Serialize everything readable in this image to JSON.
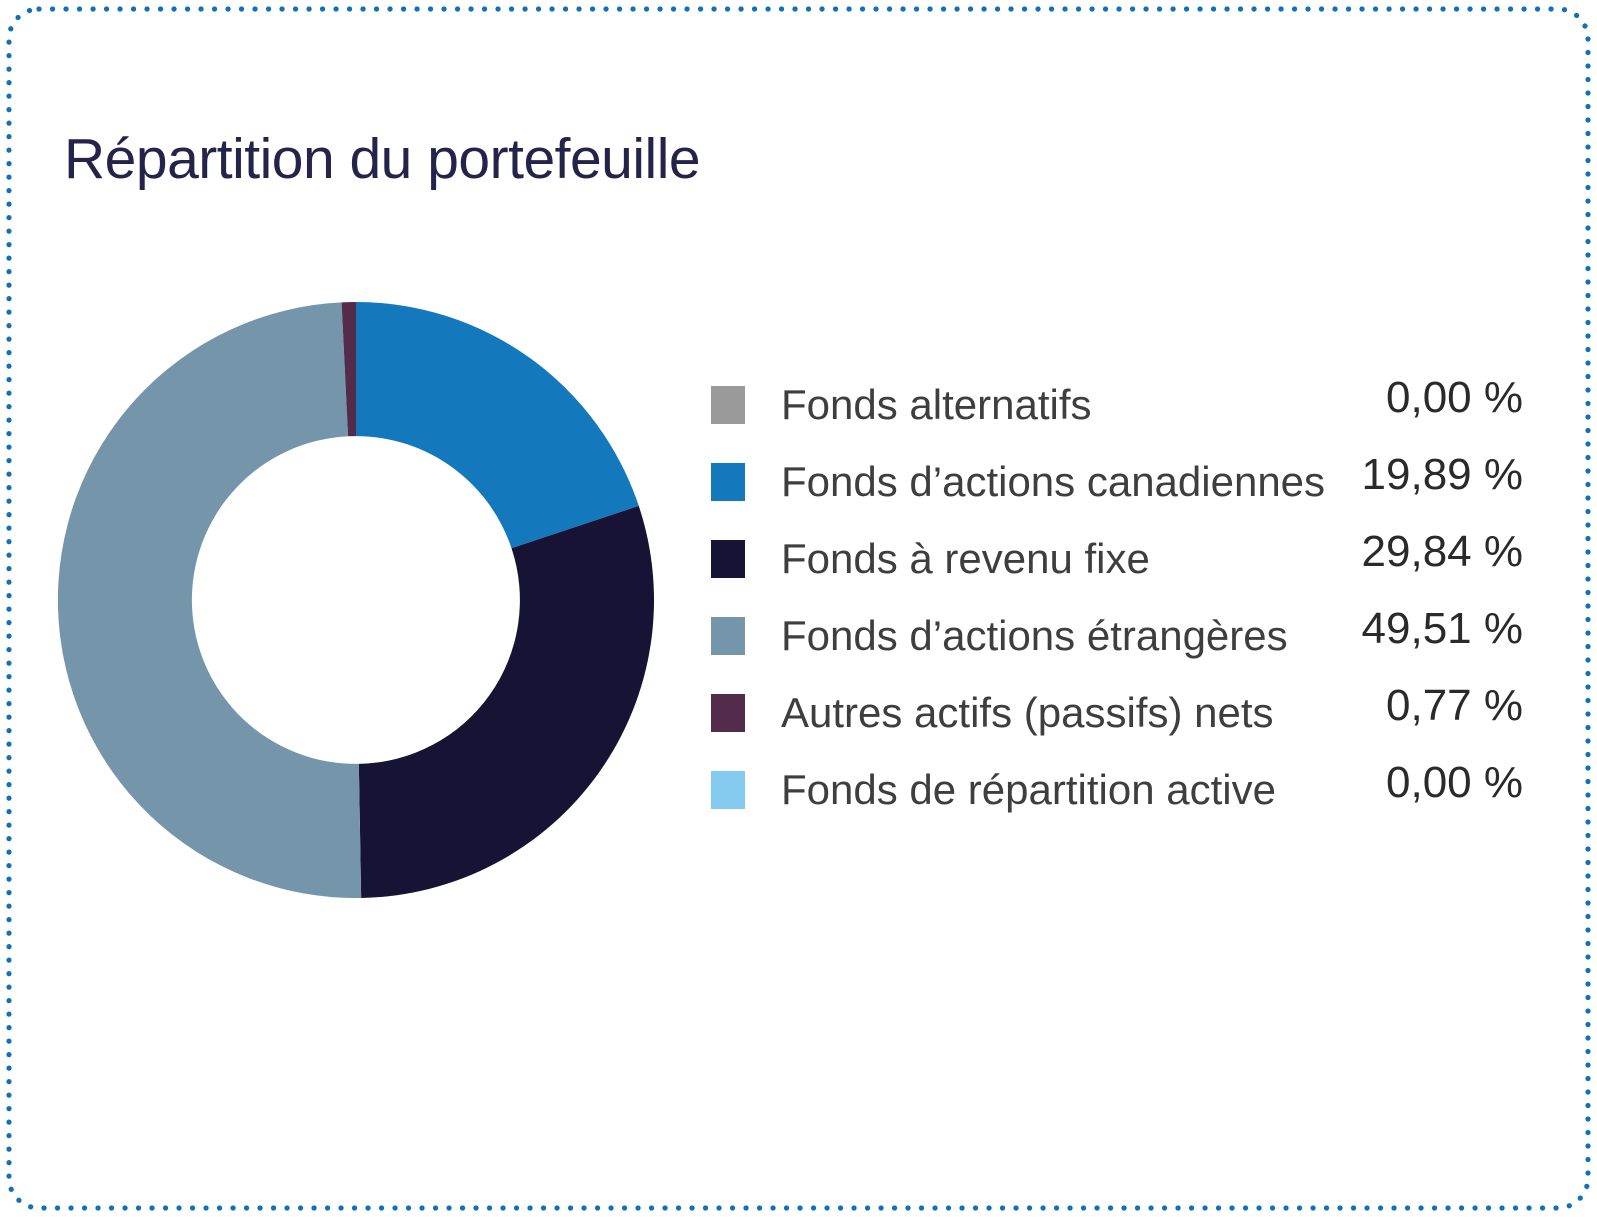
{
  "title": "Répartition du portefeuille",
  "border": {
    "color": "#1070B8",
    "style": "dotted",
    "corner_radius": 30
  },
  "chart_data": {
    "type": "pie",
    "subtype": "donut",
    "title": "Répartition du portefeuille",
    "legend_position": "right",
    "start_angle_deg": -90,
    "direction": "clockwise",
    "inner_radius_ratio": 0.55,
    "categories": [
      "Fonds alternatifs",
      "Fonds d’actions canadiennes",
      "Fonds à revenu fixe",
      "Fonds d’actions étrangères",
      "Autres actifs (passifs) nets",
      "Fonds de répartition active"
    ],
    "values": [
      0.0,
      19.89,
      29.84,
      49.51,
      0.77,
      0.0
    ],
    "value_labels": [
      "0,00 %",
      "19,89 %",
      "29,84 %",
      "49,51 %",
      "0,77 %",
      "0,00 %"
    ],
    "colors": [
      "#9A9A9A",
      "#1478BD",
      "#161334",
      "#7595AB",
      "#532C4B",
      "#85CBF0"
    ]
  },
  "colors": {
    "title": "#24244A",
    "legend_label": "#3E3E3E",
    "legend_value": "#2A2A2A",
    "background": "#FFFFFF"
  }
}
